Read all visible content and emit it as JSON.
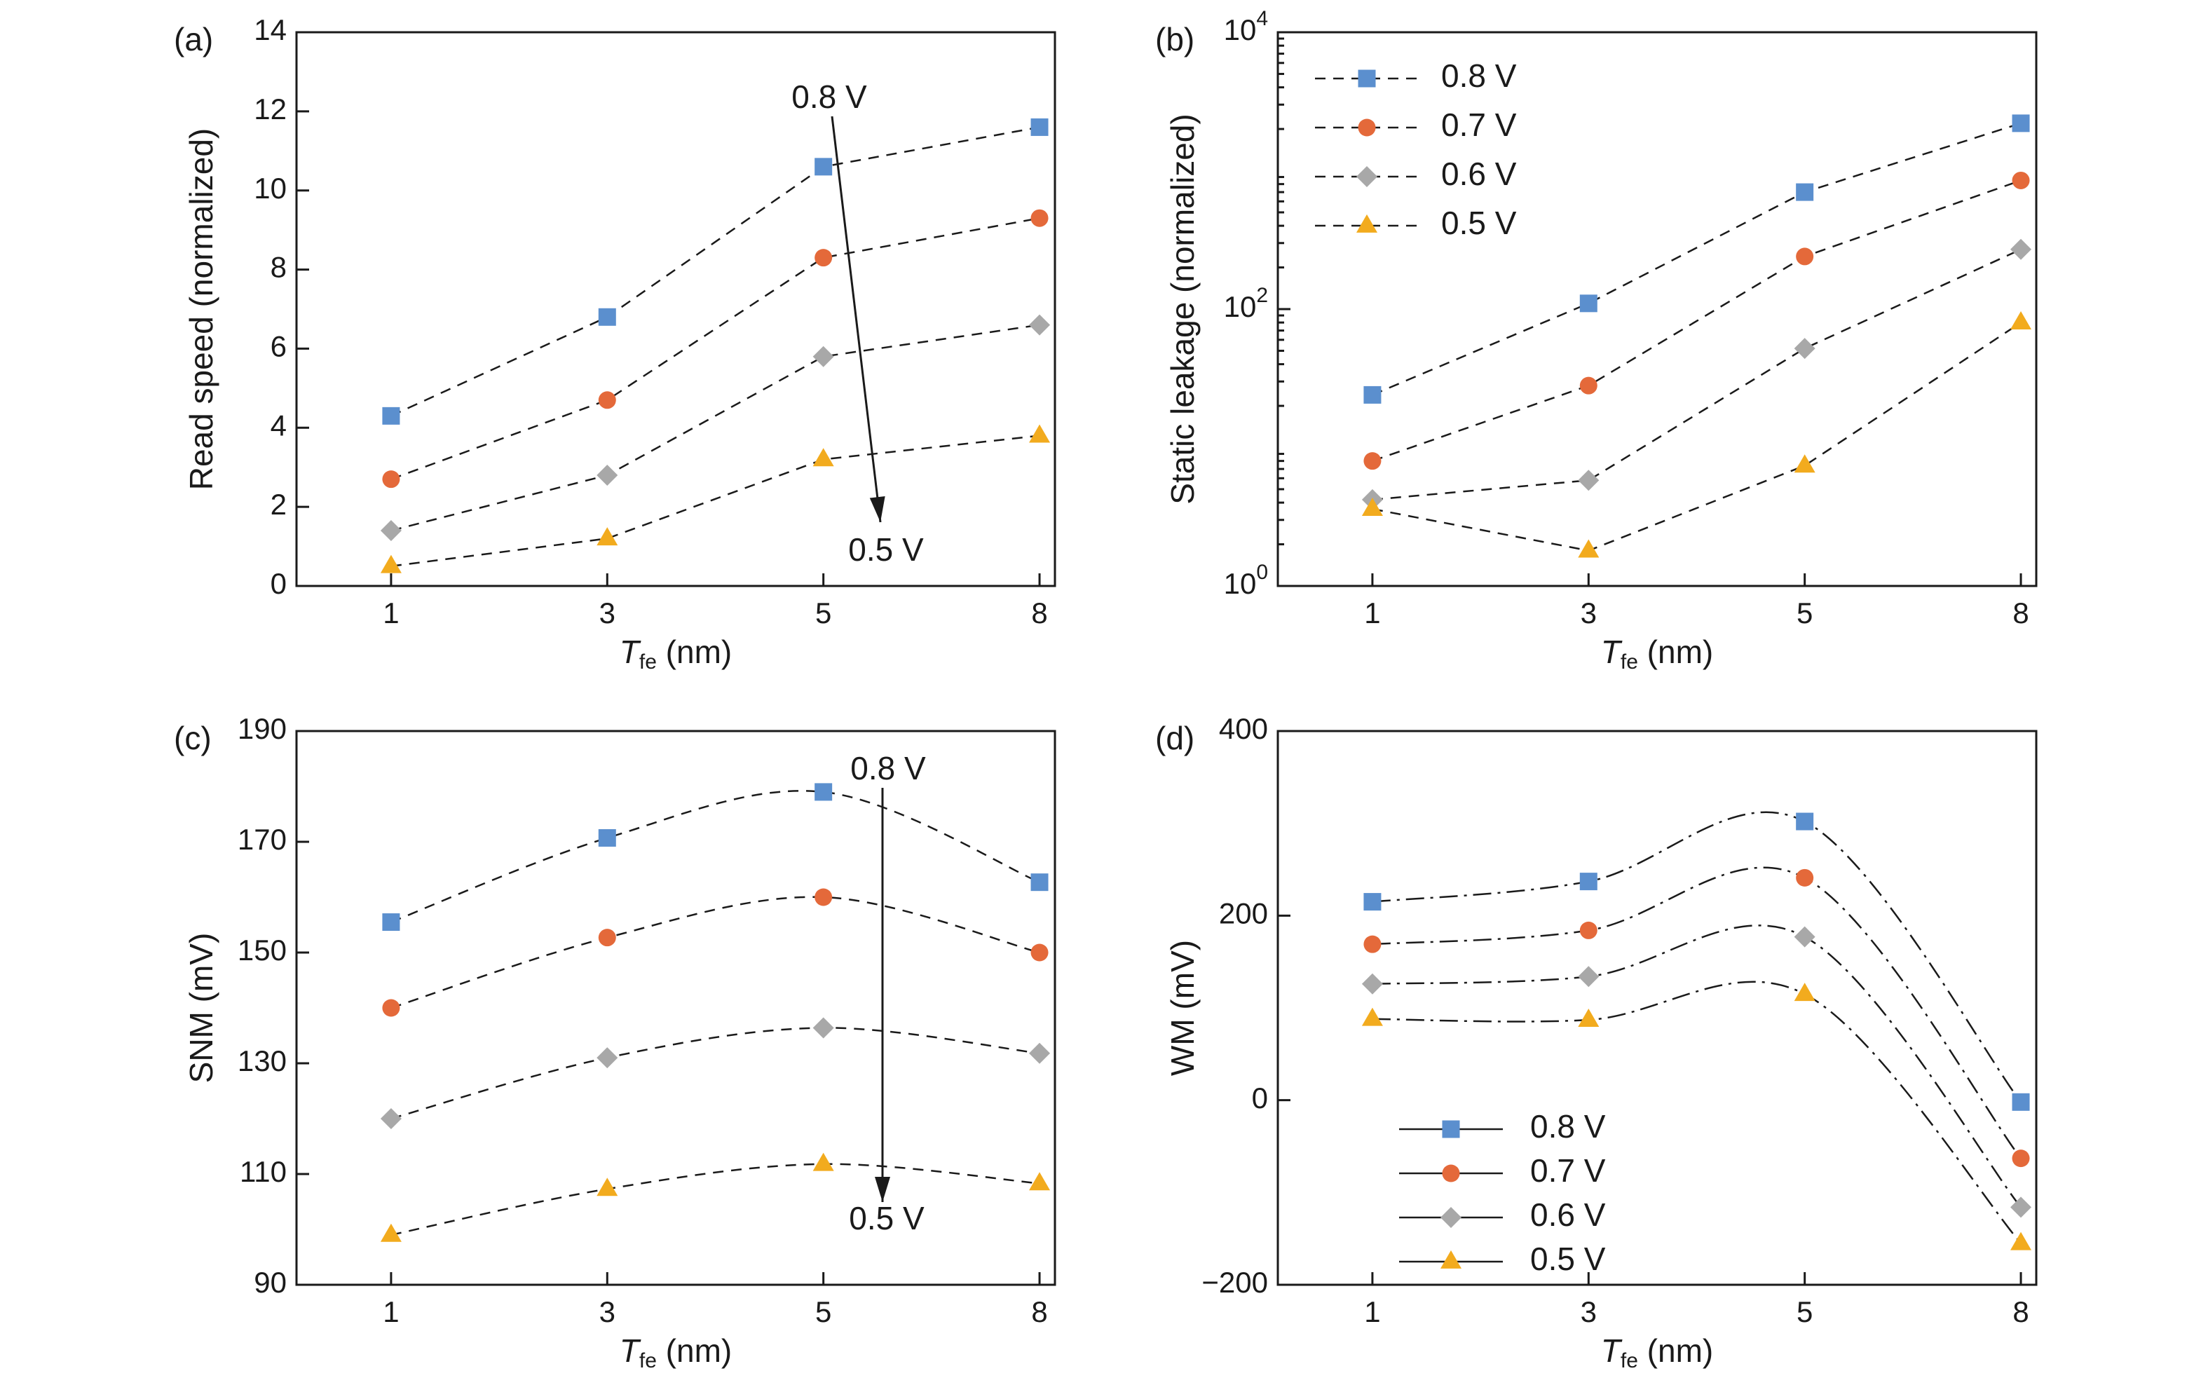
{
  "colors": {
    "0.8 V": "#5b8fce",
    "0.7 V": "#e4693a",
    "0.6 V": "#a8a8a8",
    "0.5 V": "#f2ab1e",
    "axis": "#1a1a1a"
  },
  "chart_data": [
    {
      "id": "a",
      "panel_label": "(a)",
      "type": "line",
      "line_style": "dashed",
      "x": [
        "1",
        "3",
        "5",
        "8"
      ],
      "xlabel_main": "T",
      "xlabel_sub": "fe",
      "xlabel_unit": " (nm)",
      "ylabel": "Read speed (normalized)",
      "yscale": "linear",
      "ylim": [
        0,
        14
      ],
      "yticks": [
        0,
        2,
        4,
        6,
        8,
        10,
        12,
        14
      ],
      "ytick_labels": [
        "0",
        "2",
        "4",
        "6",
        "8",
        "10",
        "12",
        "14"
      ],
      "series": [
        {
          "name": "0.8 V",
          "marker": "square",
          "values": [
            4.3,
            6.8,
            10.6,
            11.6
          ]
        },
        {
          "name": "0.7 V",
          "marker": "circle",
          "values": [
            2.7,
            4.7,
            8.3,
            9.3
          ]
        },
        {
          "name": "0.6 V",
          "marker": "diamond",
          "values": [
            1.4,
            2.8,
            5.8,
            6.6
          ]
        },
        {
          "name": "0.5 V",
          "marker": "triangle",
          "values": [
            0.5,
            1.2,
            3.2,
            3.8
          ]
        }
      ],
      "annotation": {
        "top": "0.8 V",
        "bottom": "0.5 V"
      }
    },
    {
      "id": "b",
      "panel_label": "(b)",
      "type": "line",
      "line_style": "dashed",
      "x": [
        "1",
        "3",
        "5",
        "8"
      ],
      "xlabel_main": "T",
      "xlabel_sub": "fe",
      "xlabel_unit": " (nm)",
      "ylabel": "Static leakage (normalized)",
      "yscale": "log",
      "ylim": [
        1,
        10000
      ],
      "yticks": [
        1,
        100,
        10000
      ],
      "ytick_labels": [
        {
          "base": "10",
          "exp": "0"
        },
        {
          "base": "10",
          "exp": "2"
        },
        {
          "base": "10",
          "exp": "4"
        }
      ],
      "series": [
        {
          "name": "0.8 V",
          "marker": "square",
          "values": [
            24,
            110,
            700,
            2200
          ]
        },
        {
          "name": "0.7 V",
          "marker": "circle",
          "values": [
            8,
            28,
            240,
            850
          ]
        },
        {
          "name": "0.6 V",
          "marker": "diamond",
          "values": [
            4.2,
            5.8,
            52,
            270
          ]
        },
        {
          "name": "0.5 V",
          "marker": "triangle",
          "values": [
            3.6,
            1.8,
            7.4,
            80
          ]
        }
      ],
      "legend": {
        "position": "top-left",
        "entries": [
          "0.8 V",
          "0.7 V",
          "0.6 V",
          "0.5 V"
        ]
      }
    },
    {
      "id": "c",
      "panel_label": "(c)",
      "type": "line",
      "line_style": "dashed",
      "x": [
        "1",
        "3",
        "5",
        "8"
      ],
      "xlabel_main": "T",
      "xlabel_sub": "fe",
      "xlabel_unit": " (nm)",
      "ylabel": "SNM (mV)",
      "yscale": "linear",
      "ylim": [
        90,
        190
      ],
      "yticks": [
        90,
        110,
        130,
        150,
        170,
        190
      ],
      "ytick_labels": [
        "90",
        "110",
        "130",
        "150",
        "170",
        "190"
      ],
      "series": [
        {
          "name": "0.8 V",
          "marker": "square",
          "values": [
            155.5,
            170.7,
            179,
            162.7
          ]
        },
        {
          "name": "0.7 V",
          "marker": "circle",
          "values": [
            140,
            152.7,
            160,
            150
          ]
        },
        {
          "name": "0.6 V",
          "marker": "diamond",
          "values": [
            120,
            131,
            136.4,
            131.8
          ]
        },
        {
          "name": "0.5 V",
          "marker": "triangle",
          "values": [
            99,
            107.3,
            111.8,
            108.3
          ]
        }
      ],
      "annotation": {
        "top": "0.8 V",
        "bottom": "0.5 V"
      }
    },
    {
      "id": "d",
      "panel_label": "(d)",
      "type": "line",
      "line_style": "dash-dot",
      "x": [
        "1",
        "3",
        "5",
        "8"
      ],
      "xlabel_main": "T",
      "xlabel_sub": "fe",
      "xlabel_unit": " (nm)",
      "ylabel": "WM (mV)",
      "yscale": "linear",
      "ylim": [
        -200,
        400
      ],
      "yticks": [
        -200,
        0,
        200,
        400
      ],
      "ytick_labels": [
        "−200",
        "0",
        "200",
        "400"
      ],
      "series": [
        {
          "name": "0.8 V",
          "marker": "square",
          "values": [
            215,
            237,
            302,
            -2
          ]
        },
        {
          "name": "0.7 V",
          "marker": "circle",
          "values": [
            169,
            184,
            241,
            -63
          ]
        },
        {
          "name": "0.6 V",
          "marker": "diamond",
          "values": [
            126,
            134,
            177,
            -116
          ]
        },
        {
          "name": "0.5 V",
          "marker": "triangle",
          "values": [
            88,
            87,
            115,
            -155
          ]
        }
      ],
      "legend": {
        "position": "bottom-left",
        "entries": [
          "0.8 V",
          "0.7 V",
          "0.6 V",
          "0.5 V"
        ]
      }
    }
  ]
}
